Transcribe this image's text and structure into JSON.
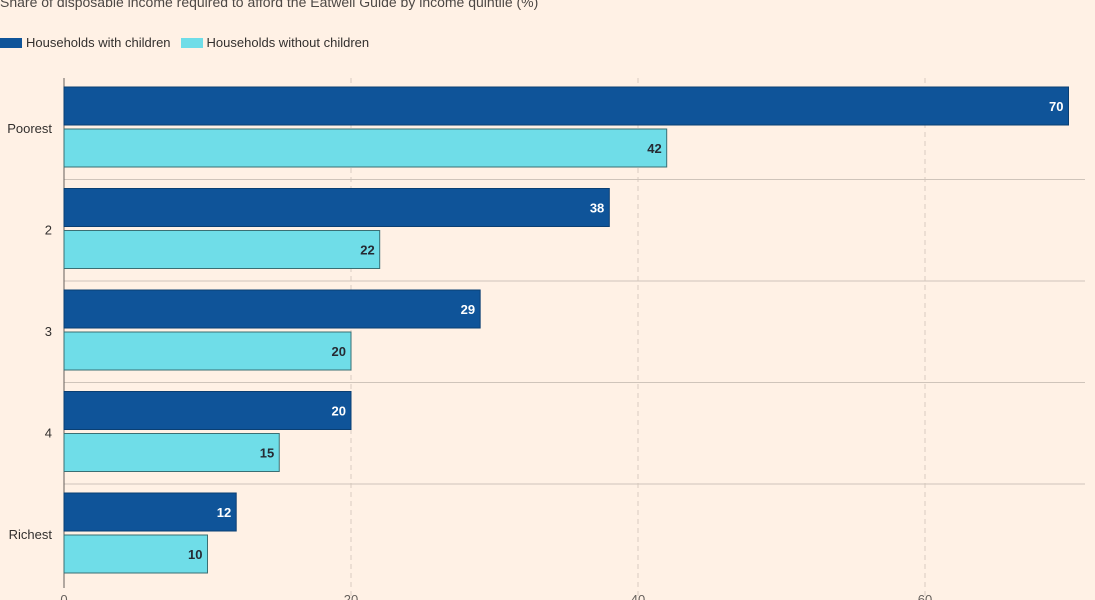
{
  "chart_data": {
    "type": "bar",
    "orientation": "horizontal",
    "title": "Share of disposable income required to afford the Eatwell Guide by income quintile (%)",
    "categories": [
      "Poorest",
      "2",
      "3",
      "4",
      "Richest"
    ],
    "series": [
      {
        "name": "Households with children",
        "values": [
          70,
          38,
          29,
          20,
          12
        ],
        "color": "#0f5499",
        "label_color": "#ffffff"
      },
      {
        "name": "Households without children",
        "values": [
          42,
          22,
          20,
          15,
          10
        ],
        "color": "#6fdde8",
        "label_color": "#262a33"
      }
    ],
    "xlim": [
      0,
      70
    ],
    "xticks": [
      0,
      20,
      40,
      60
    ],
    "grid": true,
    "legend_position": "top-left"
  }
}
